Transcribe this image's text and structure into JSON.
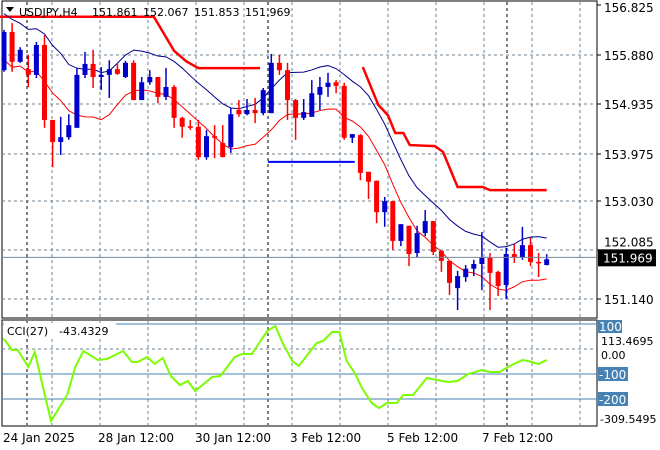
{
  "header": {
    "symbol": "USDJPY,H4",
    "open": "151.861",
    "high": "152.067",
    "low": "151.853",
    "close": "151.969"
  },
  "price_axis": {
    "ticks": [
      "156.825",
      "155.880",
      "154.935",
      "153.975",
      "153.030",
      "152.085",
      "151.140"
    ],
    "current_price": "151.969"
  },
  "cci": {
    "label": "CCI(27)",
    "value": "-43.4329",
    "axis_labels": {
      "max": "113.4695",
      "zero": "0.00",
      "min": "-309.5495"
    },
    "levels": [
      "100",
      "-100",
      "-200"
    ]
  },
  "time_axis": {
    "labels": [
      "24 Jan 2025",
      "28 Jan 12:00",
      "30 Jan 12:00",
      "3 Feb 12:00",
      "5 Feb 12:00",
      "7 Feb 12:00"
    ]
  },
  "colors": {
    "bull": "#0000cc",
    "bear": "#ff0000",
    "ma_fast": "#00008b",
    "ma_slow": "#ff0000",
    "trail": "#ff0000",
    "level_line": "#0000ff",
    "cci_line": "#7cfc00",
    "cci_level": "#4682b4",
    "grid": "#708090"
  },
  "chart_data": {
    "type": "candlestick",
    "symbol": "USDJPY",
    "timeframe": "H4",
    "ohlc": [
      [
        155.58,
        156.35,
        155.55,
        156.31
      ],
      [
        156.31,
        156.48,
        155.55,
        155.74
      ],
      [
        155.74,
        156.02,
        155.72,
        155.97
      ],
      [
        155.6,
        155.87,
        155.26,
        155.49
      ],
      [
        155.49,
        156.12,
        155.43,
        156.06
      ],
      [
        156.06,
        156.25,
        154.48,
        154.63
      ],
      [
        154.63,
        154.63,
        153.73,
        154.21
      ],
      [
        154.21,
        154.69,
        153.96,
        154.3
      ],
      [
        154.3,
        154.74,
        154.25,
        154.53
      ],
      [
        154.48,
        155.62,
        154.48,
        155.49
      ],
      [
        155.49,
        155.93,
        155.43,
        155.7
      ],
      [
        155.7,
        155.97,
        155.24,
        155.45
      ],
      [
        155.45,
        155.64,
        155.2,
        155.49
      ],
      [
        155.49,
        155.77,
        155.05,
        155.6
      ],
      [
        155.6,
        155.7,
        155.49,
        155.51
      ],
      [
        155.45,
        155.76,
        155.43,
        155.72
      ],
      [
        155.72,
        155.77,
        155.01,
        155.01
      ],
      [
        155.01,
        155.45,
        155.01,
        155.35
      ],
      [
        155.35,
        155.58,
        155.3,
        155.45
      ],
      [
        155.45,
        155.45,
        154.95,
        155.07
      ],
      [
        155.07,
        155.62,
        155.01,
        155.26
      ],
      [
        155.26,
        155.3,
        154.48,
        154.67
      ],
      [
        154.67,
        154.69,
        154.29,
        154.5
      ],
      [
        154.51,
        154.63,
        154.44,
        154.48
      ],
      [
        154.5,
        154.63,
        153.87,
        153.92
      ],
      [
        153.92,
        154.44,
        153.87,
        154.32
      ],
      [
        154.32,
        154.53,
        153.9,
        154.29
      ],
      [
        154.19,
        154.53,
        153.92,
        153.92
      ],
      [
        154.11,
        154.86,
        154.0,
        154.74
      ],
      [
        154.82,
        155.01,
        154.69,
        154.74
      ],
      [
        154.74,
        155.03,
        154.72,
        154.82
      ],
      [
        154.82,
        155.05,
        154.57,
        154.76
      ],
      [
        154.76,
        155.24,
        154.72,
        155.2
      ],
      [
        154.76,
        155.89,
        154.76,
        155.72
      ],
      [
        155.72,
        155.87,
        155.49,
        155.58
      ],
      [
        155.58,
        155.72,
        154.63,
        155.01
      ],
      [
        155.01,
        155.03,
        154.25,
        154.67
      ],
      [
        154.67,
        155.03,
        154.63,
        154.78
      ],
      [
        154.69,
        155.39,
        154.69,
        155.14
      ],
      [
        155.11,
        155.45,
        154.82,
        155.26
      ],
      [
        155.26,
        155.53,
        155.07,
        155.34
      ],
      [
        155.35,
        155.39,
        155.14,
        155.28
      ],
      [
        155.28,
        155.34,
        154.25,
        154.29
      ],
      [
        154.29,
        154.36,
        154.19,
        154.36
      ],
      [
        154.34,
        154.36,
        153.48,
        153.62
      ],
      [
        153.64,
        153.64,
        153.12,
        153.45
      ],
      [
        153.47,
        153.47,
        152.66,
        152.87
      ],
      [
        152.87,
        153.16,
        152.59,
        153.08
      ],
      [
        153.08,
        153.08,
        152.15,
        152.32
      ],
      [
        152.32,
        152.64,
        152.22,
        152.64
      ],
      [
        152.61,
        152.61,
        151.84,
        152.07
      ],
      [
        152.09,
        152.61,
        152.01,
        152.47
      ],
      [
        152.47,
        152.91,
        152.41,
        152.7
      ],
      [
        152.7,
        152.7,
        152.05,
        152.11
      ],
      [
        152.13,
        152.13,
        151.73,
        151.94
      ],
      [
        151.94,
        151.94,
        151.29,
        151.52
      ],
      [
        151.42,
        151.75,
        151.0,
        151.65
      ],
      [
        151.63,
        151.86,
        151.54,
        151.79
      ],
      [
        151.79,
        151.96,
        151.65,
        151.88
      ],
      [
        151.88,
        152.49,
        151.38,
        152.01
      ],
      [
        152.01,
        152.09,
        151.0,
        151.71
      ],
      [
        151.73,
        151.75,
        151.27,
        151.46
      ],
      [
        151.48,
        152.19,
        151.21,
        152.07
      ],
      [
        152.07,
        152.26,
        151.9,
        152.01
      ],
      [
        152.01,
        152.59,
        151.96,
        152.24
      ],
      [
        152.24,
        152.38,
        151.84,
        151.92
      ],
      [
        151.92,
        152.09,
        151.63,
        151.9
      ],
      [
        151.861,
        152.067,
        151.853,
        151.969
      ]
    ],
    "ma_period": 8,
    "trailing_stop": [
      [
        [
          -0.5,
          156.6
        ],
        [
          18.5,
          156.6
        ],
        [
          21,
          155.95
        ],
        [
          22.5,
          155.75
        ],
        [
          24,
          155.62
        ],
        [
          31.6,
          155.62
        ]
      ],
      [
        [
          44.3,
          155.64
        ],
        [
          46.2,
          154.92
        ],
        [
          47.4,
          154.72
        ],
        [
          48.3,
          154.38
        ],
        [
          49.3,
          154.38
        ],
        [
          50.1,
          154.15
        ],
        [
          53.2,
          154.13
        ],
        [
          54.2,
          154.02
        ],
        [
          56.0,
          153.35
        ],
        [
          59.1,
          153.35
        ],
        [
          60.0,
          153.29
        ],
        [
          67.0,
          153.29
        ]
      ]
    ],
    "level_line": {
      "from_bar": 32.6,
      "to_bar": 43.3,
      "price": 153.83
    },
    "price_range": [
      151.0,
      156.825
    ],
    "cci_points": [
      [
        -0.1,
        44
      ],
      [
        1.0,
        -4
      ],
      [
        1.7,
        -4
      ],
      [
        3.0,
        -72
      ],
      [
        3.8,
        -12
      ],
      [
        5.8,
        -288
      ],
      [
        7.8,
        -184
      ],
      [
        8.8,
        -72
      ],
      [
        9.8,
        -8
      ],
      [
        11.6,
        -44
      ],
      [
        12.7,
        -40
      ],
      [
        14.7,
        -8
      ],
      [
        15.8,
        -52
      ],
      [
        16.5,
        -52
      ],
      [
        17.7,
        -32
      ],
      [
        18.6,
        -60
      ],
      [
        19.6,
        -36
      ],
      [
        20.6,
        -108
      ],
      [
        21.7,
        -144
      ],
      [
        22.7,
        -128
      ],
      [
        23.6,
        -168
      ],
      [
        25.7,
        -112
      ],
      [
        26.7,
        -108
      ],
      [
        28.5,
        -32
      ],
      [
        29.4,
        -20
      ],
      [
        30.6,
        -20
      ],
      [
        32.5,
        72
      ],
      [
        33.5,
        92
      ],
      [
        34.4,
        24
      ],
      [
        35.6,
        -48
      ],
      [
        36.4,
        -68
      ],
      [
        38.6,
        24
      ],
      [
        39.4,
        32
      ],
      [
        40.5,
        68
      ],
      [
        41.4,
        68
      ],
      [
        42.3,
        -48
      ],
      [
        43.3,
        -96
      ],
      [
        44.2,
        -156
      ],
      [
        45.4,
        -216
      ],
      [
        46.3,
        -236
      ],
      [
        47.3,
        -216
      ],
      [
        48.5,
        -216
      ],
      [
        49.3,
        -184
      ],
      [
        50.5,
        -184
      ],
      [
        52.2,
        -116
      ],
      [
        53.5,
        -124
      ],
      [
        54.8,
        -132
      ],
      [
        56.0,
        -128
      ],
      [
        57.3,
        -100
      ],
      [
        59.0,
        -84
      ],
      [
        60.0,
        -92
      ],
      [
        61.2,
        -92
      ],
      [
        62.2,
        -72
      ],
      [
        64.0,
        -44
      ],
      [
        64.7,
        -48
      ],
      [
        66.0,
        -60
      ],
      [
        67.0,
        -43.43
      ]
    ],
    "cci_range": [
      -309.5495,
      113.4695
    ]
  }
}
